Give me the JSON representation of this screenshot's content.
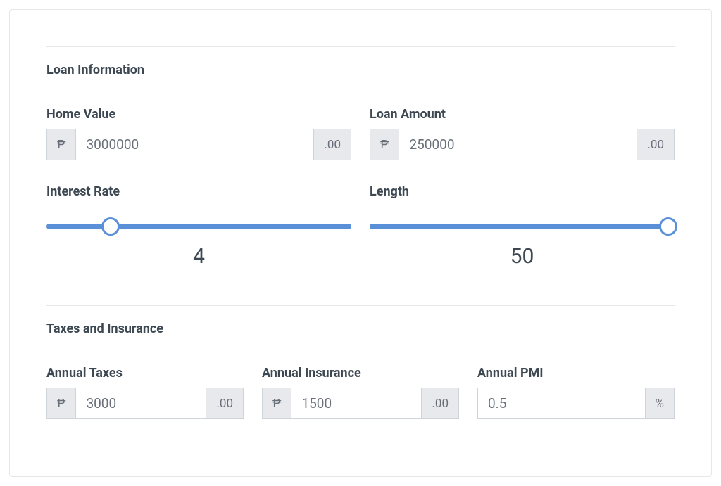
{
  "colors": {
    "text": "#3d4852",
    "muted": "#6a707a",
    "addon_bg": "#e7e9ed",
    "addon_text": "#696f78",
    "border": "#cfd4da",
    "divider": "#e5e7eb",
    "slider": "#5a90d8",
    "background": "#ffffff"
  },
  "currency_symbol": "₱",
  "decimal_suffix": ".00",
  "percent_symbol": "%",
  "sections": {
    "loan": {
      "title": "Loan Information",
      "home_value": {
        "label": "Home Value",
        "value": "3000000"
      },
      "loan_amount": {
        "label": "Loan Amount",
        "value": "250000"
      },
      "interest_rate": {
        "label": "Interest Rate",
        "value": "4",
        "min": 0,
        "max": 20,
        "thumb_percent": 21
      },
      "length": {
        "label": "Length",
        "value": "50",
        "min": 0,
        "max": 50,
        "thumb_percent": 98
      }
    },
    "taxes": {
      "title": "Taxes and Insurance",
      "annual_taxes": {
        "label": "Annual Taxes",
        "value": "3000"
      },
      "annual_insurance": {
        "label": "Annual Insurance",
        "value": "1500"
      },
      "annual_pmi": {
        "label": "Annual PMI",
        "value": "0.5"
      }
    }
  }
}
